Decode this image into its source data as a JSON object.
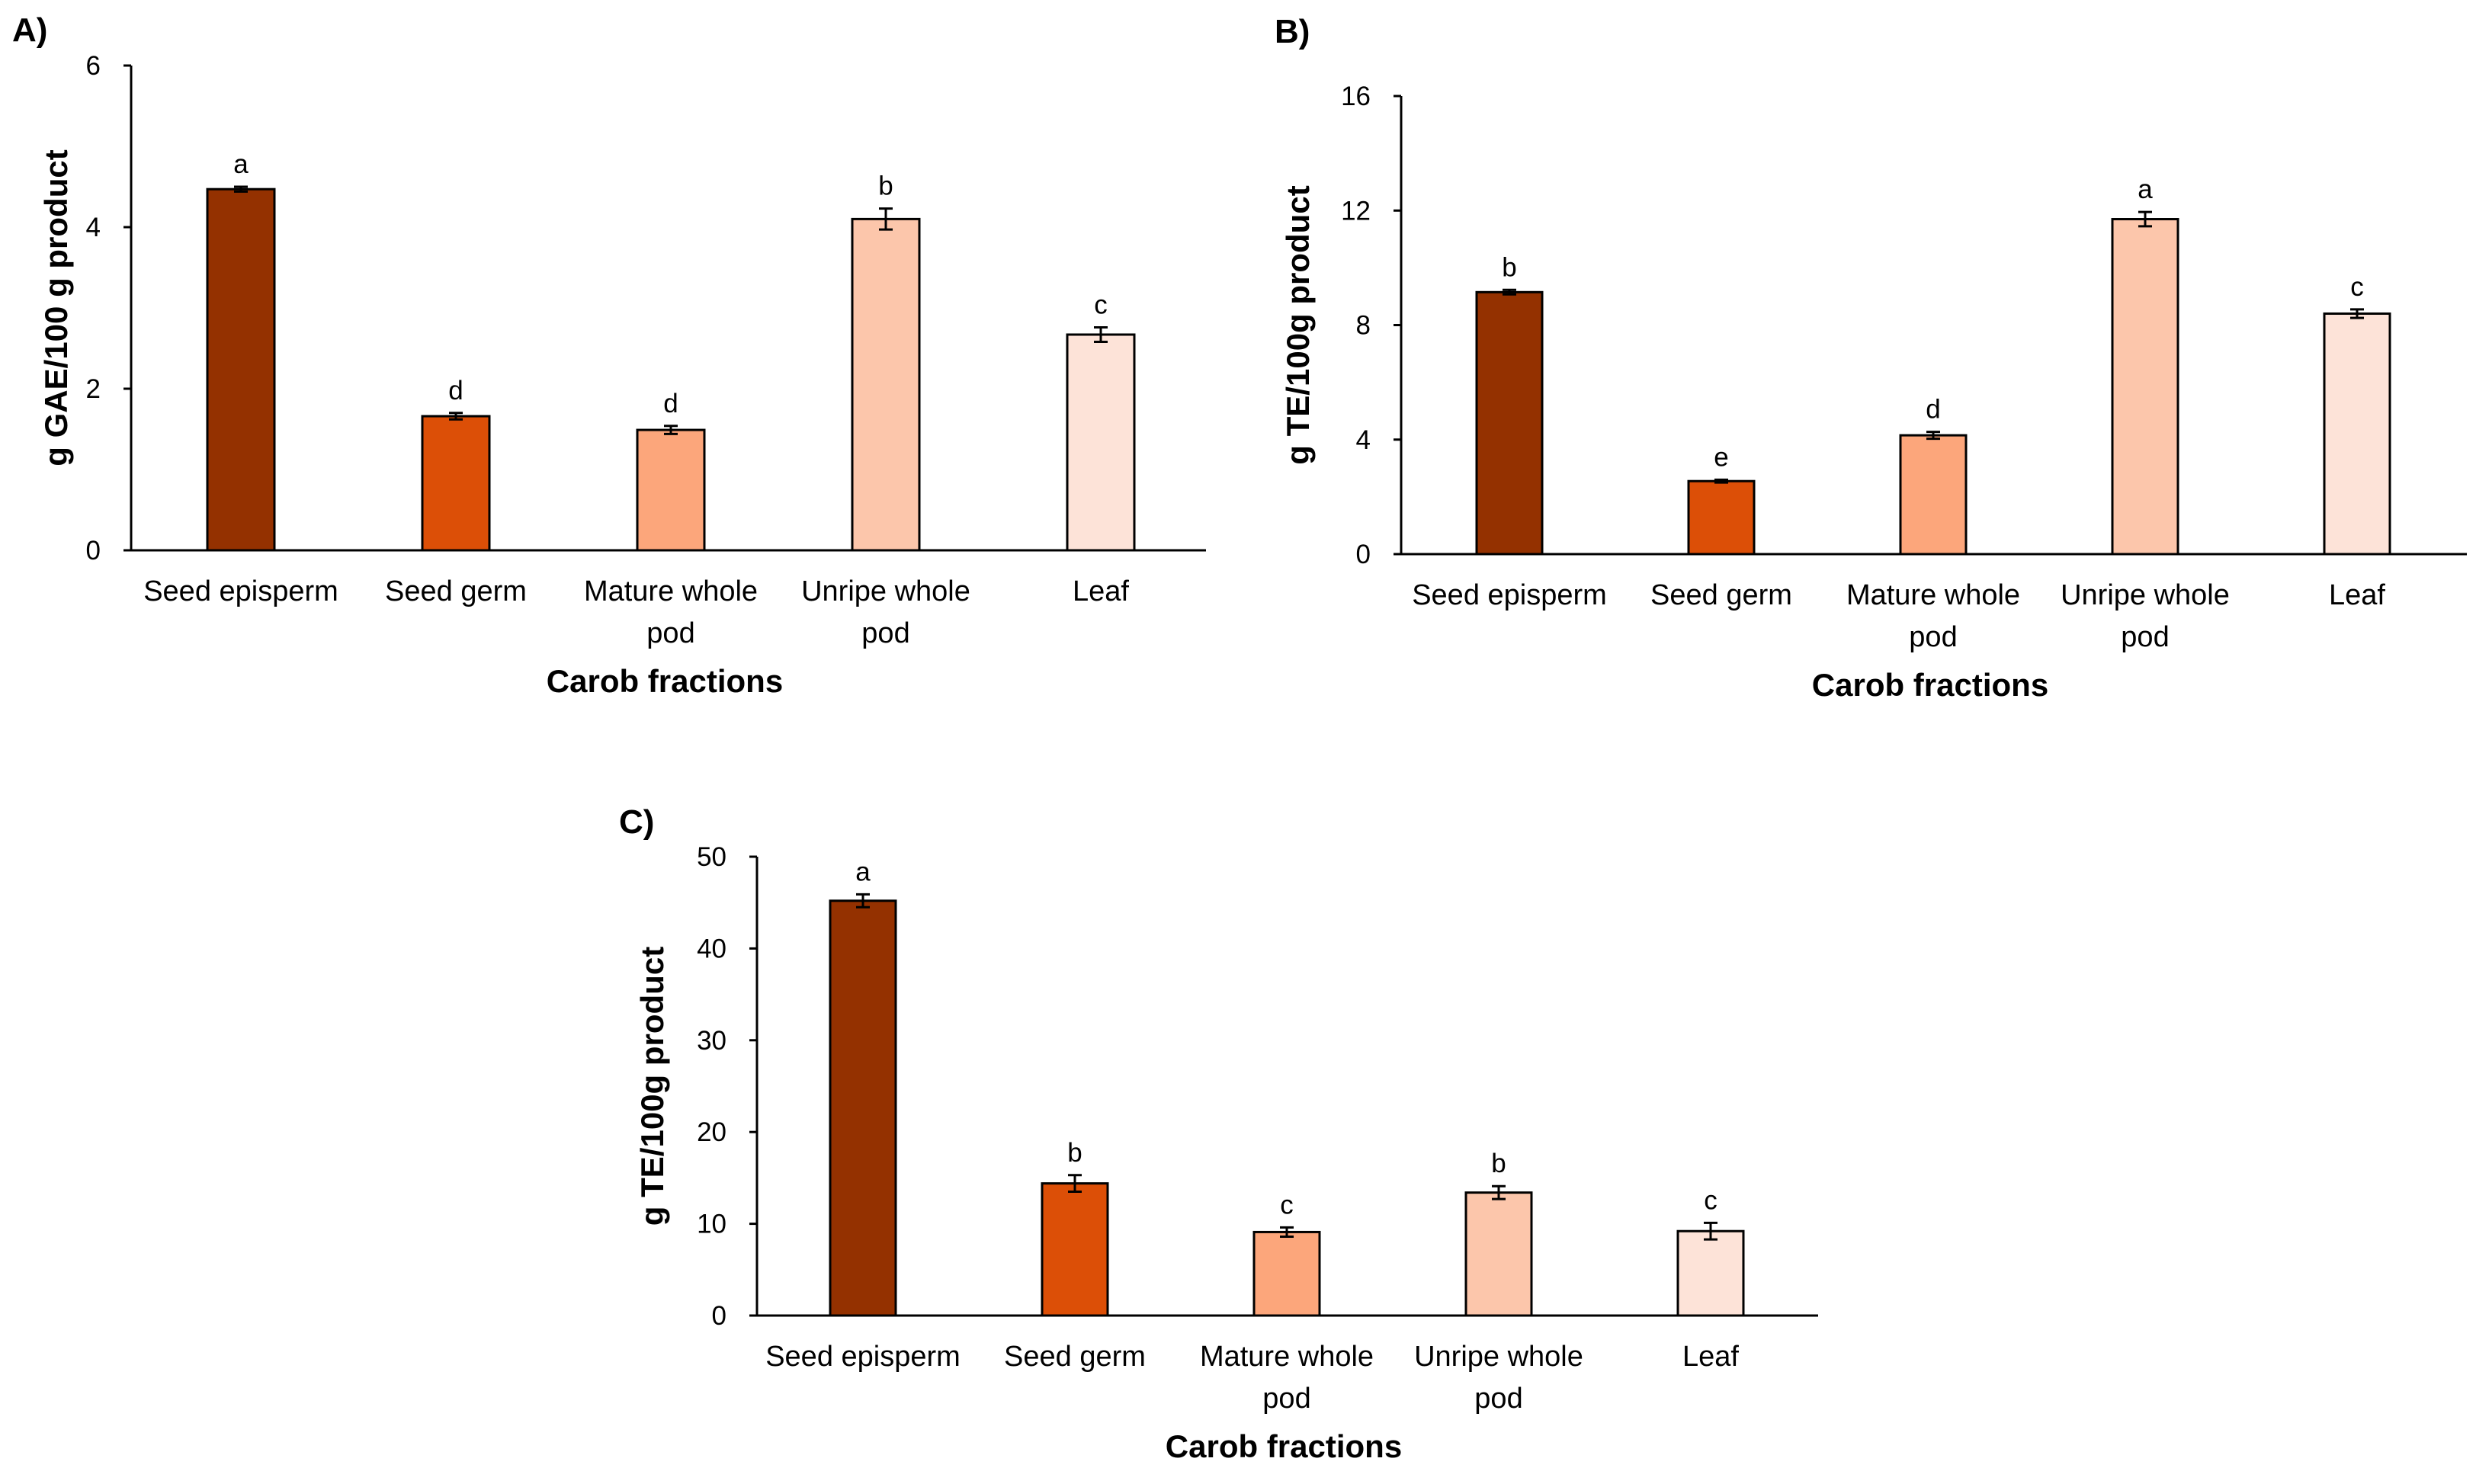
{
  "figure": "Carob fractions composite bar charts",
  "colors": {
    "seed_episperm": "#943100",
    "seed_germ": "#dc4f07",
    "mature_whole_pod": "#fca67b",
    "unripe_whole_pod": "#fcc6ab",
    "leaf": "#fde3d8"
  },
  "chart_data": [
    {
      "type": "bar",
      "panel": "A)",
      "title": "",
      "xlabel": "Carob fractions",
      "ylabel": "g  GAE/100 g product",
      "ylim": [
        0,
        6
      ],
      "yticks": [
        0,
        2,
        4,
        6
      ],
      "categories": [
        [
          "Seed episperm"
        ],
        [
          "Seed germ"
        ],
        [
          "Mature whole",
          "pod"
        ],
        [
          "Unripe whole",
          "pod"
        ],
        [
          "Leaf"
        ]
      ],
      "values": [
        4.47,
        1.66,
        1.49,
        4.1,
        2.67
      ],
      "errors": [
        0.03,
        0.04,
        0.05,
        0.13,
        0.09
      ],
      "significance": [
        "a",
        "d",
        "d",
        "b",
        "c"
      ]
    },
    {
      "type": "bar",
      "panel": "B)",
      "title": "",
      "xlabel": "Carob fractions",
      "ylabel": "g TE/100g product",
      "ylim": [
        0,
        16
      ],
      "yticks": [
        0,
        4,
        8,
        12,
        16
      ],
      "categories": [
        [
          "Seed episperm"
        ],
        [
          "Seed germ"
        ],
        [
          "Mature whole",
          "pod"
        ],
        [
          "Unripe whole",
          "pod"
        ],
        [
          "Leaf"
        ]
      ],
      "values": [
        9.15,
        2.55,
        4.15,
        11.7,
        8.4
      ],
      "errors": [
        0.08,
        0.05,
        0.12,
        0.25,
        0.15
      ],
      "significance": [
        "b",
        "e",
        "d",
        "a",
        "c"
      ]
    },
    {
      "type": "bar",
      "panel": "C)",
      "title": "",
      "xlabel": "Carob fractions",
      "ylabel": "g TE/100g product",
      "ylim": [
        0,
        50
      ],
      "yticks": [
        0,
        10,
        20,
        30,
        40,
        50
      ],
      "categories": [
        [
          "Seed episperm"
        ],
        [
          "Seed germ"
        ],
        [
          "Mature whole",
          "pod"
        ],
        [
          "Unripe whole",
          "pod"
        ],
        [
          "Leaf"
        ]
      ],
      "values": [
        45.2,
        14.4,
        9.1,
        13.4,
        9.2
      ],
      "errors": [
        0.7,
        0.9,
        0.5,
        0.7,
        0.9
      ],
      "significance": [
        "a",
        "b",
        "c",
        "b",
        "c"
      ]
    }
  ]
}
